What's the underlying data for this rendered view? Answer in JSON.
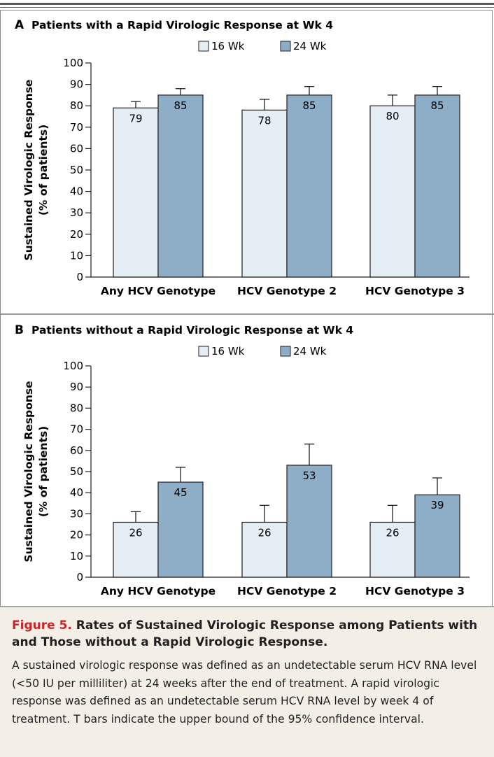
{
  "legend": {
    "series": [
      "16 Wk",
      "24 Wk"
    ]
  },
  "chart_data": [
    {
      "type": "bar",
      "panel_letter": "A",
      "title": "Patients with a Rapid Virologic Response at Wk 4",
      "ylabel_line1": "Sustained Virologic Response",
      "ylabel_line2": "(% of patients)",
      "ylim": [
        0,
        100
      ],
      "yticks": [
        "0",
        "10",
        "20",
        "30",
        "40",
        "50",
        "60",
        "70",
        "80",
        "90",
        "100"
      ],
      "categories": [
        "Any HCV Genotype",
        "HCV Genotype 2",
        "HCV Genotype 3"
      ],
      "series": [
        {
          "name": "16 Wk",
          "values": [
            79,
            78,
            80
          ],
          "ci_upper": [
            82,
            83,
            85
          ],
          "color": "#e6eef5"
        },
        {
          "name": "24 Wk",
          "values": [
            85,
            85,
            85
          ],
          "ci_upper": [
            88,
            89,
            89
          ],
          "color": "#8eaec8"
        }
      ]
    },
    {
      "type": "bar",
      "panel_letter": "B",
      "title": "Patients without a Rapid Virologic Response at Wk 4",
      "ylabel_line1": "Sustained Virologic Response",
      "ylabel_line2": "(% of patients)",
      "ylim": [
        0,
        100
      ],
      "yticks": [
        "0",
        "10",
        "20",
        "30",
        "40",
        "50",
        "60",
        "70",
        "80",
        "90",
        "100"
      ],
      "categories": [
        "Any HCV Genotype",
        "HCV Genotype 2",
        "HCV Genotype 3"
      ],
      "series": [
        {
          "name": "16 Wk",
          "values": [
            26,
            26,
            26
          ],
          "ci_upper": [
            31,
            34,
            34
          ],
          "color": "#e6eef5"
        },
        {
          "name": "24 Wk",
          "values": [
            45,
            53,
            39
          ],
          "ci_upper": [
            52,
            63,
            47
          ],
          "color": "#8eaec8"
        }
      ]
    }
  ],
  "caption": {
    "figure_number": "Figure 5.",
    "title": "Rates of Sustained Virologic Response among Patients with and Those without a Rapid Virologic Response.",
    "text": "A sustained virologic response was defined as an undetectable serum HCV RNA level (<50 IU per milliliter) at 24 weeks after the end of treatment. A rapid virologic response was defined as an undetectable serum HCV RNA level by week 4 of treatment. T bars indicate the upper bound of the 95% confidence interval."
  }
}
